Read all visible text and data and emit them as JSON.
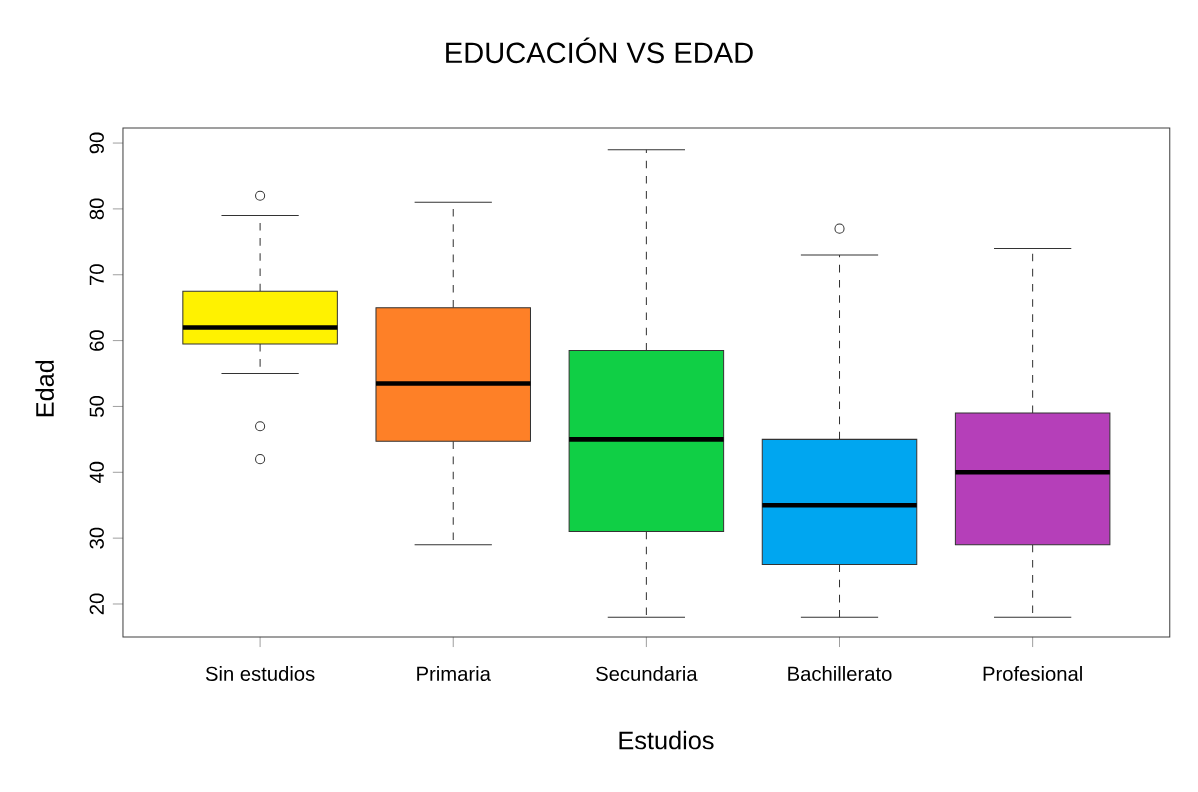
{
  "chart_data": {
    "type": "box",
    "title": "EDUCACIÓN VS EDAD",
    "xlabel": "Estudios",
    "ylabel": "Edad",
    "categories": [
      "Sin estudios",
      "Primaria",
      "Secundaria",
      "Bachillerato",
      "Profesional"
    ],
    "colors": [
      "#fff200",
      "#fe8027",
      "#10cf45",
      "#00a6f0",
      "#b53fb9"
    ],
    "boxes": [
      {
        "low": 55,
        "q1": 59.5,
        "median": 62,
        "q3": 67.5,
        "high": 79,
        "outliers": [
          82,
          47,
          42
        ]
      },
      {
        "low": 29,
        "q1": 44.7,
        "median": 53.5,
        "q3": 65,
        "high": 81
      },
      {
        "low": 18,
        "q1": 31,
        "median": 45,
        "q3": 58.5,
        "high": 89
      },
      {
        "low": 18,
        "q1": 26,
        "median": 35,
        "q3": 45,
        "high": 73,
        "outliers": [
          77
        ]
      },
      {
        "low": 18,
        "q1": 29,
        "median": 40,
        "q3": 49,
        "high": 74
      }
    ],
    "ylim": [
      15,
      92.3
    ],
    "yticks": [
      20,
      30,
      40,
      50,
      60,
      70,
      80,
      90
    ],
    "marker": "circle"
  }
}
